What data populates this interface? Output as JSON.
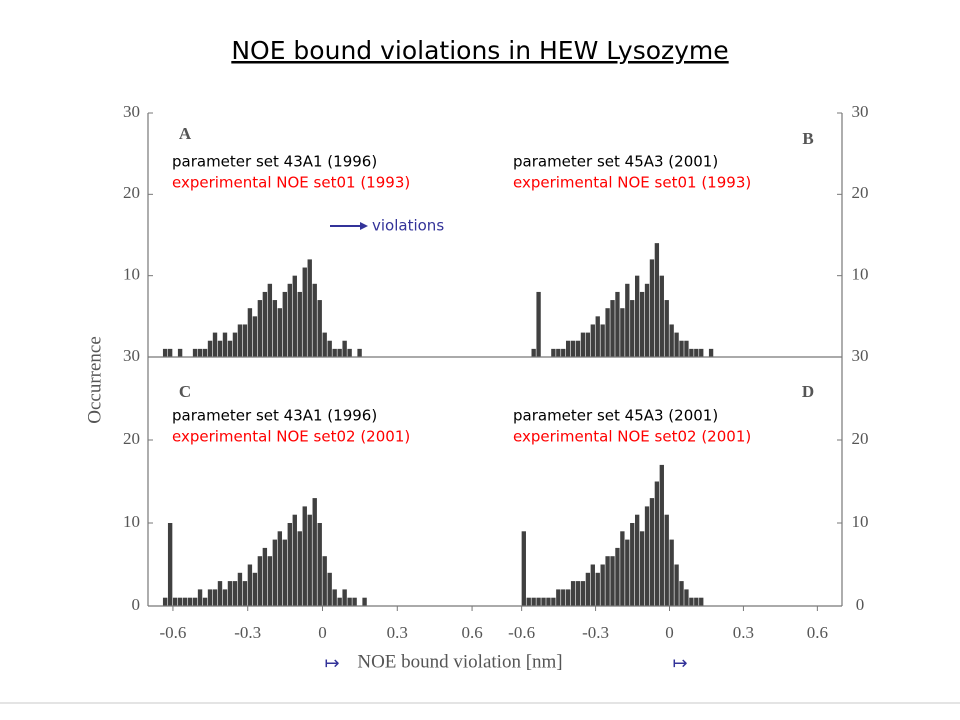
{
  "title": "NOE bound violations in HEW Lysozyme",
  "ylabel": "Occurrence",
  "xlabel": "NOE bound violation [nm]",
  "arrow_marks": [
    "↦",
    "↦"
  ],
  "chart_data": [
    {
      "type": "histogram",
      "panel_label": "A",
      "annotations": [
        {
          "text": "parameter set 43A1 (1996)",
          "color": "#000000"
        },
        {
          "text": "experimental NOE set01 (1993)",
          "color": "#ff0000"
        }
      ],
      "arrow_annotation": {
        "text": "violations",
        "color": "#333399"
      },
      "bins": [
        -0.64,
        -0.62,
        -0.6,
        -0.58,
        -0.56,
        -0.54,
        -0.52,
        -0.5,
        -0.48,
        -0.46,
        -0.44,
        -0.42,
        -0.4,
        -0.38,
        -0.36,
        -0.34,
        -0.32,
        -0.3,
        -0.28,
        -0.26,
        -0.24,
        -0.22,
        -0.2,
        -0.18,
        -0.16,
        -0.14,
        -0.12,
        -0.1,
        -0.08,
        -0.06,
        -0.04,
        -0.02,
        0,
        0.02,
        0.04,
        0.06,
        0.08,
        0.1,
        0.12,
        0.14,
        0.16,
        0.18,
        0.2
      ],
      "counts": [
        1,
        1,
        0,
        1,
        0,
        0,
        1,
        1,
        1,
        2,
        3,
        2,
        3,
        2,
        3,
        4,
        4,
        6,
        5,
        7,
        8,
        9,
        7,
        6,
        8,
        9,
        10,
        8,
        11,
        12,
        9,
        7,
        3,
        2,
        1,
        1,
        2,
        1,
        0,
        1,
        0,
        0
      ],
      "color": "#404040",
      "xlim": [
        -0.7,
        0.7
      ],
      "ylim": [
        0,
        30
      ],
      "yticks": [
        10,
        20,
        30
      ]
    },
    {
      "type": "histogram",
      "panel_label": "B",
      "annotations": [
        {
          "text": "parameter set 45A3 (2001)",
          "color": "#000000"
        },
        {
          "text": "experimental NOE set01 (1993)",
          "color": "#ff0000"
        }
      ],
      "bins": [
        -0.64,
        -0.62,
        -0.6,
        -0.58,
        -0.56,
        -0.54,
        -0.52,
        -0.5,
        -0.48,
        -0.46,
        -0.44,
        -0.42,
        -0.4,
        -0.38,
        -0.36,
        -0.34,
        -0.32,
        -0.3,
        -0.28,
        -0.26,
        -0.24,
        -0.22,
        -0.2,
        -0.18,
        -0.16,
        -0.14,
        -0.12,
        -0.1,
        -0.08,
        -0.06,
        -0.04,
        -0.02,
        0,
        0.02,
        0.04,
        0.06,
        0.08,
        0.1,
        0.12,
        0.14,
        0.16,
        0.18,
        0.2
      ],
      "counts": [
        0,
        0,
        0,
        0,
        1,
        8,
        0,
        0,
        1,
        1,
        1,
        2,
        2,
        2,
        3,
        3,
        4,
        5,
        4,
        6,
        7,
        8,
        6,
        9,
        7,
        10,
        8,
        9,
        12,
        14,
        10,
        7,
        4,
        3,
        2,
        2,
        1,
        1,
        1,
        0,
        1,
        0
      ],
      "color": "#404040",
      "xlim": [
        -0.7,
        0.7
      ],
      "ylim": [
        0,
        30
      ],
      "yticks": [
        10,
        20,
        30
      ]
    },
    {
      "type": "histogram",
      "panel_label": "C",
      "annotations": [
        {
          "text": "parameter set 43A1 (1996)",
          "color": "#000000"
        },
        {
          "text": "experimental NOE set02 (2001)",
          "color": "#ff0000"
        }
      ],
      "bins": [
        -0.64,
        -0.62,
        -0.6,
        -0.58,
        -0.56,
        -0.54,
        -0.52,
        -0.5,
        -0.48,
        -0.46,
        -0.44,
        -0.42,
        -0.4,
        -0.38,
        -0.36,
        -0.34,
        -0.32,
        -0.3,
        -0.28,
        -0.26,
        -0.24,
        -0.22,
        -0.2,
        -0.18,
        -0.16,
        -0.14,
        -0.12,
        -0.1,
        -0.08,
        -0.06,
        -0.04,
        -0.02,
        0,
        0.02,
        0.04,
        0.06,
        0.08,
        0.1,
        0.12,
        0.14,
        0.16,
        0.18,
        0.2
      ],
      "counts": [
        1,
        10,
        1,
        1,
        1,
        1,
        1,
        2,
        1,
        2,
        2,
        3,
        2,
        3,
        3,
        4,
        3,
        5,
        4,
        6,
        7,
        6,
        8,
        9,
        8,
        10,
        11,
        9,
        12,
        11,
        13,
        10,
        6,
        4,
        2,
        1,
        2,
        1,
        1,
        0,
        1,
        0
      ],
      "color": "#404040",
      "xlim": [
        -0.7,
        0.7
      ],
      "ylim": [
        0,
        30
      ],
      "yticks": [
        0,
        10,
        20,
        30
      ],
      "xticks": [
        -0.6,
        -0.3,
        0,
        0.3,
        0.6
      ]
    },
    {
      "type": "histogram",
      "panel_label": "D",
      "annotations": [
        {
          "text": "parameter set 45A3 (2001)",
          "color": "#000000"
        },
        {
          "text": "experimental NOE set02 (2001)",
          "color": "#ff0000"
        }
      ],
      "bins": [
        -0.64,
        -0.62,
        -0.6,
        -0.58,
        -0.56,
        -0.54,
        -0.52,
        -0.5,
        -0.48,
        -0.46,
        -0.44,
        -0.42,
        -0.4,
        -0.38,
        -0.36,
        -0.34,
        -0.32,
        -0.3,
        -0.28,
        -0.26,
        -0.24,
        -0.22,
        -0.2,
        -0.18,
        -0.16,
        -0.14,
        -0.12,
        -0.1,
        -0.08,
        -0.06,
        -0.04,
        -0.02,
        0,
        0.02,
        0.04,
        0.06,
        0.08,
        0.1,
        0.12,
        0.14,
        0.16,
        0.18,
        0.2
      ],
      "counts": [
        0,
        0,
        9,
        1,
        1,
        1,
        1,
        1,
        1,
        2,
        2,
        2,
        3,
        3,
        3,
        4,
        5,
        4,
        5,
        6,
        6,
        7,
        9,
        8,
        10,
        11,
        9,
        12,
        13,
        15,
        17,
        11,
        8,
        5,
        3,
        2,
        1,
        1,
        1,
        0,
        0,
        0
      ],
      "color": "#404040",
      "xlim": [
        -0.7,
        0.7
      ],
      "ylim": [
        0,
        30
      ],
      "yticks": [
        0,
        10,
        20,
        30
      ],
      "xticks": [
        -0.6,
        -0.3,
        0,
        0.3,
        0.6
      ]
    }
  ]
}
